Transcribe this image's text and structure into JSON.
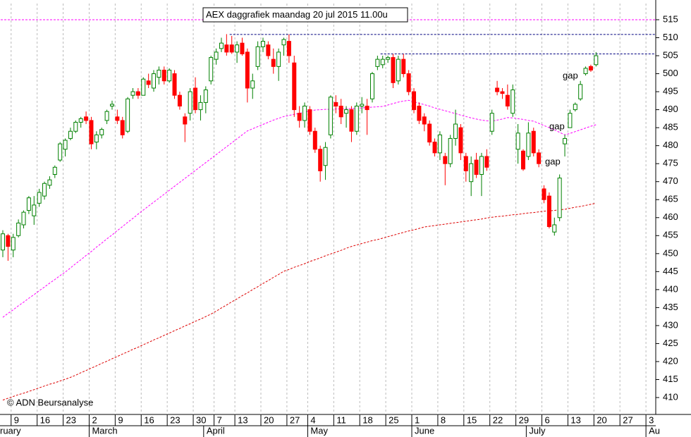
{
  "chart_data": {
    "type": "candlestick",
    "title": "AEX daggrafiek maandag 20 jul 2015 11.00u",
    "credit": "© ADN Beursanalyse",
    "categories": [
      null,
      null,
      "9",
      null,
      null,
      null,
      null,
      "16",
      null,
      null,
      null,
      null,
      "23",
      null,
      null,
      null,
      null,
      "2",
      null,
      null,
      null,
      null,
      "9",
      null,
      null,
      null,
      null,
      "16",
      null,
      null,
      null,
      null,
      "23",
      null,
      null,
      null,
      null,
      "30",
      null,
      null,
      null,
      "7",
      null,
      null,
      null,
      "13",
      null,
      null,
      null,
      null,
      "20",
      null,
      null,
      null,
      null,
      "27",
      null,
      null,
      null,
      "4",
      null,
      null,
      null,
      null,
      "11",
      null,
      null,
      null,
      null,
      "18",
      null,
      null,
      null,
      null,
      "25",
      null,
      null,
      null,
      null,
      "1",
      null,
      null,
      null,
      null,
      "8",
      null,
      null,
      null,
      null,
      "15",
      null,
      null,
      null,
      null,
      "22",
      null,
      null,
      null,
      null,
      "29",
      null,
      null,
      null,
      null,
      "6",
      null,
      null,
      null,
      null,
      "13",
      null,
      null,
      null,
      null,
      "20",
      null,
      null,
      null,
      null,
      "27",
      null,
      null,
      null,
      null,
      "3"
    ],
    "months": [
      "ruary",
      null,
      null,
      null,
      null,
      null,
      null,
      null,
      null,
      null,
      null,
      null,
      null,
      null,
      null,
      null,
      null,
      "March",
      null,
      null,
      null,
      null,
      null,
      null,
      null,
      null,
      null,
      null,
      null,
      null,
      null,
      null,
      null,
      null,
      null,
      null,
      null,
      null,
      null,
      "April",
      null,
      null,
      null,
      null,
      null,
      null,
      null,
      null,
      null,
      null,
      null,
      null,
      null,
      null,
      null,
      null,
      null,
      null,
      null,
      "May",
      null,
      null,
      null,
      null,
      null,
      null,
      null,
      null,
      null,
      null,
      null,
      null,
      null,
      null,
      null,
      null,
      null,
      null,
      null,
      "June",
      null,
      null,
      null,
      null,
      null,
      null,
      null,
      null,
      null,
      null,
      null,
      null,
      null,
      null,
      null,
      null,
      null,
      null,
      null,
      null,
      null,
      "July",
      null,
      null,
      null,
      null,
      null,
      null,
      null,
      null,
      null,
      null,
      null,
      null,
      null,
      null,
      null,
      null,
      null,
      null,
      null,
      null,
      null,
      null,
      "Au"
    ],
    "open": [
      451,
      455,
      451,
      455,
      458,
      462,
      460.5,
      464,
      466,
      469,
      472,
      476,
      479,
      482,
      484,
      486.5,
      488,
      487,
      481,
      483,
      487,
      491,
      488,
      487,
      484,
      494,
      495,
      494,
      498,
      496,
      499,
      501,
      498,
      500,
      494,
      488,
      489,
      496,
      490,
      492,
      498,
      504,
      507,
      508,
      508,
      506,
      508.5,
      506,
      496,
      502,
      507.5,
      508,
      504,
      502,
      508,
      509,
      503,
      489,
      487,
      490,
      484,
      479,
      474.5,
      483,
      492,
      491,
      489,
      490,
      484,
      491,
      491,
      493,
      502,
      502.5,
      504,
      504.5,
      498,
      504,
      500,
      495,
      491,
      488,
      486,
      481,
      478,
      477,
      475,
      482,
      485,
      477,
      470,
      476,
      472,
      477,
      484,
      496,
      495,
      494,
      489,
      479,
      478.5,
      477,
      484,
      478,
      468,
      466,
      456,
      460,
      480.5,
      485,
      490,
      493,
      500,
      502,
      502.5,
      null,
      null,
      null,
      null,
      null,
      null,
      null,
      null,
      null,
      null
    ],
    "high": [
      456.5,
      455.5,
      455.5,
      459.5,
      462,
      466,
      466,
      468,
      470,
      471.5,
      474.5,
      481,
      482,
      485,
      487,
      488,
      489.5,
      488,
      484,
      485,
      490,
      492.5,
      490,
      488,
      493.5,
      496,
      496,
      499,
      500,
      501,
      502,
      502,
      501.5,
      501,
      495,
      489,
      496,
      499,
      494,
      496.5,
      505,
      507,
      510,
      511,
      510.5,
      509,
      510,
      507,
      500,
      509,
      510,
      509,
      507,
      507,
      510,
      510.9,
      505,
      491,
      492,
      491,
      485,
      480,
      481,
      494,
      494,
      493,
      491,
      491,
      492,
      493.5,
      493,
      500.5,
      505,
      505,
      505,
      505.5,
      505,
      505.5,
      501,
      496,
      492,
      489,
      487,
      482,
      484,
      478,
      483,
      490,
      486,
      478,
      477,
      478,
      478,
      479,
      490,
      498,
      496,
      497,
      497,
      486,
      479,
      486.5,
      485,
      479,
      469,
      467,
      460,
      472,
      483,
      490,
      492,
      498,
      502,
      502.5,
      506,
      null,
      null,
      null,
      null,
      null,
      null,
      null,
      null,
      null,
      null
    ],
    "low": [
      449,
      448,
      449,
      454.5,
      457,
      461,
      458,
      463,
      465,
      468,
      471,
      475.5,
      477,
      481.5,
      483.5,
      485,
      486,
      479,
      479,
      482,
      486,
      490,
      486,
      482,
      483.5,
      493,
      493,
      494,
      496,
      495,
      497,
      497,
      497.5,
      493,
      490,
      481,
      487,
      489,
      487,
      489,
      497,
      502.5,
      506,
      505,
      505.5,
      503,
      505,
      492,
      493,
      501,
      506,
      504,
      500,
      498,
      505,
      503,
      488,
      485,
      485,
      483,
      478,
      470,
      470.5,
      482,
      489,
      486,
      485,
      481,
      483,
      489,
      483,
      492,
      501,
      501.5,
      503,
      496,
      497,
      499,
      494,
      489,
      486,
      484,
      480,
      477,
      476,
      469,
      474,
      480,
      476,
      470,
      466,
      471,
      466,
      473,
      483,
      494,
      493,
      490,
      488,
      475,
      473,
      476,
      477,
      474,
      464,
      457,
      455,
      459,
      477,
      485,
      489.5,
      492.5,
      499.5,
      500.5,
      502,
      null,
      null,
      null,
      null,
      null,
      null,
      null,
      null,
      null,
      null
    ],
    "close": [
      455.5,
      452,
      454.5,
      458.5,
      461.5,
      465.5,
      463.5,
      467,
      469.5,
      470.5,
      474,
      480.5,
      481.5,
      484,
      486.5,
      487.5,
      487,
      480.5,
      483,
      484.5,
      489.5,
      491.5,
      487,
      483,
      493,
      495,
      494,
      498.5,
      497,
      500,
      501,
      498,
      501,
      494,
      491,
      486,
      495,
      490,
      492,
      495.5,
      504.5,
      506,
      508.5,
      506,
      506,
      508,
      505.5,
      496,
      498,
      507.5,
      509,
      505,
      502,
      506,
      509.5,
      505,
      490,
      487,
      491,
      484,
      479,
      473,
      479.5,
      493.5,
      491,
      488,
      490,
      484,
      491,
      491.5,
      490,
      500,
      504,
      504,
      504.5,
      497.5,
      504,
      500,
      495,
      490,
      487,
      486,
      481,
      478,
      483,
      475,
      482,
      486,
      478,
      473,
      475,
      472,
      477,
      474,
      489,
      495,
      494.5,
      491,
      495.5,
      483.5,
      473.5,
      483.5,
      478,
      475,
      465,
      457.5,
      458,
      471,
      482,
      489,
      491.5,
      497,
      501.5,
      501,
      505,
      null,
      null,
      null,
      null,
      null,
      null,
      null,
      null,
      null,
      null
    ],
    "up_color": "#008000",
    "down_color": "#ff0000",
    "moving_averages": [
      {
        "color": "#ff00ff",
        "values": [
          432.3,
          433.4,
          434.4,
          435.5,
          436.5,
          437.6,
          438.6,
          439.7,
          440.7,
          441.8,
          442.8,
          443.9,
          444.9,
          446.0,
          447.2,
          448.3,
          449.5,
          450.6,
          451.8,
          452.9,
          454.1,
          455.2,
          456.4,
          457.5,
          458.7,
          459.8,
          461.0,
          462.1,
          463.2,
          464.3,
          465.4,
          466.5,
          467.6,
          468.7,
          469.8,
          470.9,
          472.0,
          473.1,
          474.2,
          475.3,
          476.4,
          477.5,
          478.6,
          479.7,
          480.8,
          481.9,
          483.0,
          484.1,
          484.7,
          485.3,
          485.9,
          486.5,
          487.1,
          487.6,
          488.1,
          488.4,
          488.7,
          489.0,
          489.3,
          489.6,
          489.9,
          490.0,
          490.1,
          490.1,
          490.2,
          490.2,
          490.3,
          490.3,
          490.4,
          490.5,
          490.6,
          490.7,
          490.8,
          490.9,
          491.3,
          491.7,
          492.1,
          492.4,
          492.6,
          492.2,
          491.8,
          491.4,
          491.0,
          490.5,
          490.1,
          489.7,
          489.3,
          488.9,
          488.5,
          488.1,
          487.7,
          487.4,
          487.1,
          486.9,
          486.8,
          487.1,
          487.4,
          487.8,
          487.7,
          487.5,
          487.3,
          487.0,
          486.8,
          486.2,
          485.6,
          485.0,
          484.4,
          483.7,
          483.0,
          483.4,
          483.9,
          484.4,
          484.9,
          485.4,
          485.8,
          null,
          null,
          null,
          null,
          null,
          null,
          null,
          null,
          null,
          null
        ]
      },
      {
        "color": "#dd0000",
        "values": [
          409.3,
          409.8,
          410.3,
          410.8,
          411.2,
          411.7,
          412.2,
          412.7,
          413.2,
          413.7,
          414.1,
          414.6,
          415.1,
          415.6,
          416.2,
          416.9,
          417.5,
          418.2,
          418.8,
          419.5,
          420.1,
          420.8,
          421.4,
          422.1,
          422.7,
          423.4,
          424.0,
          424.7,
          425.3,
          426.0,
          426.6,
          427.3,
          427.9,
          428.6,
          429.2,
          429.9,
          430.5,
          431.2,
          431.8,
          432.5,
          433.2,
          434.0,
          434.9,
          435.7,
          436.6,
          437.4,
          438.3,
          439.1,
          440.0,
          440.8,
          441.7,
          442.5,
          443.4,
          444.2,
          445.1,
          445.6,
          446.2,
          446.7,
          447.2,
          447.8,
          448.3,
          448.8,
          449.4,
          449.9,
          450.4,
          450.9,
          451.5,
          452.0,
          452.4,
          452.8,
          453.2,
          453.6,
          453.9,
          454.3,
          454.7,
          455.1,
          455.5,
          455.9,
          456.3,
          456.6,
          457.0,
          457.4,
          457.6,
          457.8,
          458.0,
          458.2,
          458.4,
          458.6,
          458.8,
          459.0,
          459.2,
          459.4,
          459.6,
          459.9,
          460.1,
          460.3,
          460.4,
          460.6,
          460.8,
          460.9,
          461.1,
          461.3,
          461.4,
          461.6,
          461.8,
          461.9,
          462.0,
          462.2,
          462.3,
          462.6,
          462.9,
          463.1,
          463.4,
          463.7,
          464.0,
          null,
          null,
          null,
          null,
          null,
          null,
          null,
          null,
          null,
          null
        ]
      }
    ],
    "reference_lines": [
      {
        "value": 515,
        "color": "#ff00ff",
        "start": 0
      },
      {
        "value": 510.9,
        "color": "#000080",
        "start": 44
      },
      {
        "value": 505.5,
        "color": "#000080",
        "start": 73
      }
    ],
    "annotations": [
      "gap",
      "gap",
      "gap"
    ],
    "ylim": [
      405.5,
      519.5
    ],
    "yticks": [
      410,
      415,
      420,
      425,
      430,
      435,
      440,
      445,
      450,
      455,
      460,
      465,
      470,
      475,
      480,
      485,
      490,
      495,
      500,
      505,
      510,
      515
    ],
    "grid": true
  }
}
